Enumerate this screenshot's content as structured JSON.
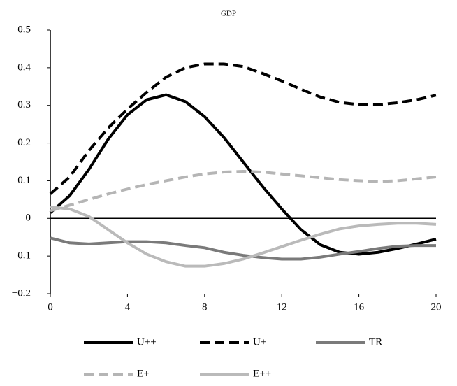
{
  "chart_data": {
    "type": "line",
    "title": "GDP",
    "x": [
      0,
      1,
      2,
      3,
      4,
      5,
      6,
      7,
      8,
      9,
      10,
      11,
      12,
      13,
      14,
      15,
      16,
      17,
      18,
      19,
      20
    ],
    "xlim": [
      0,
      20
    ],
    "xticks": [
      0,
      4,
      8,
      12,
      16,
      20
    ],
    "ylim": [
      -0.2,
      0.5
    ],
    "yticks": [
      0.5,
      0.4,
      0.3,
      0.2,
      0.1,
      0,
      {
        "value": -0.1,
        "label": "−0.1"
      },
      {
        "value": -0.2,
        "label": "−0.2"
      }
    ],
    "series": [
      {
        "name": "U++",
        "color": "#000000",
        "dash": false,
        "values": [
          0.015,
          0.06,
          0.13,
          0.21,
          0.275,
          0.315,
          0.328,
          0.31,
          0.27,
          0.215,
          0.15,
          0.085,
          0.025,
          -0.03,
          -0.07,
          -0.09,
          -0.095,
          -0.09,
          -0.08,
          -0.068,
          -0.055
        ]
      },
      {
        "name": "U+",
        "color": "#000000",
        "dash": true,
        "values": [
          0.065,
          0.11,
          0.18,
          0.24,
          0.29,
          0.335,
          0.375,
          0.4,
          0.41,
          0.41,
          0.403,
          0.385,
          0.365,
          0.343,
          0.322,
          0.308,
          0.302,
          0.302,
          0.307,
          0.315,
          0.327
        ]
      },
      {
        "name": "TR",
        "color": "#7a7a7a",
        "dash": false,
        "values": [
          -0.052,
          -0.065,
          -0.068,
          -0.065,
          -0.062,
          -0.062,
          -0.065,
          -0.072,
          -0.078,
          -0.09,
          -0.098,
          -0.104,
          -0.108,
          -0.108,
          -0.103,
          -0.095,
          -0.088,
          -0.08,
          -0.074,
          -0.072,
          -0.072
        ]
      },
      {
        "name": "E+",
        "color": "#b5b5b5",
        "dash": true,
        "values": [
          0.02,
          0.035,
          0.05,
          0.065,
          0.078,
          0.09,
          0.1,
          0.11,
          0.118,
          0.123,
          0.125,
          0.123,
          0.118,
          0.113,
          0.108,
          0.103,
          0.1,
          0.098,
          0.1,
          0.105,
          0.11
        ]
      },
      {
        "name": "E++",
        "color": "#bababa",
        "dash": false,
        "values": [
          0.03,
          0.025,
          0.005,
          -0.03,
          -0.065,
          -0.095,
          -0.115,
          -0.127,
          -0.127,
          -0.12,
          -0.108,
          -0.092,
          -0.075,
          -0.058,
          -0.042,
          -0.028,
          -0.02,
          -0.016,
          -0.013,
          -0.013,
          -0.016
        ]
      }
    ]
  }
}
